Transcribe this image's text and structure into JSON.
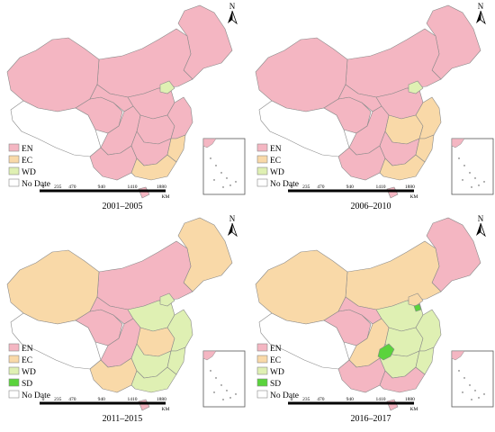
{
  "legend_labels": {
    "en": "EN",
    "ec": "EC",
    "wd": "WD",
    "sd": "SD",
    "nodate": "No Date"
  },
  "colors": {
    "en": "#f4b6c2",
    "ec": "#f9d9a8",
    "wd": "#dff0b3",
    "sd": "#5ad33c",
    "nodate": "#ffffff",
    "border": "#8a8a8a"
  },
  "north_label": "N",
  "scale": {
    "ticks": [
      "0",
      "235",
      "470",
      "940",
      "1410",
      "1880"
    ],
    "unit": "KM"
  },
  "panels": [
    {
      "period": "2001–2005",
      "regions": {
        "northeast": "en",
        "inner_mongolia": "en",
        "xinjiang": "en",
        "tibet": "nodate",
        "qinghai": "en",
        "gansu": "en",
        "north_china": "en",
        "beijing_tianjin": "wd",
        "central": "en",
        "sichuan": "en",
        "southwest": "en",
        "east_coast": "en",
        "south_central": "en",
        "guangdong": "ec",
        "fujian": "ec",
        "hainan": "en",
        "sd_blob_north": "none",
        "sd_blob_center": "none"
      }
    },
    {
      "period": "2006–2010",
      "regions": {
        "northeast": "en",
        "inner_mongolia": "en",
        "xinjiang": "en",
        "tibet": "nodate",
        "qinghai": "en",
        "gansu": "en",
        "north_china": "en",
        "beijing_tianjin": "wd",
        "central": "ec",
        "sichuan": "en",
        "southwest": "en",
        "east_coast": "ec",
        "south_central": "en",
        "guangdong": "ec",
        "fujian": "ec",
        "hainan": "en",
        "sd_blob_north": "none",
        "sd_blob_center": "none"
      }
    },
    {
      "period": "2011–2015",
      "regions": {
        "northeast": "ec",
        "inner_mongolia": "en",
        "xinjiang": "ec",
        "tibet": "nodate",
        "qinghai": "en",
        "gansu": "en",
        "north_china": "wd",
        "beijing_tianjin": "wd",
        "central": "ec",
        "sichuan": "en",
        "southwest": "ec",
        "east_coast": "wd",
        "south_central": "wd",
        "guangdong": "wd",
        "fujian": "wd",
        "hainan": "en",
        "sd_blob_north": "none",
        "sd_blob_center": "none"
      }
    },
    {
      "period": "2016–2017",
      "regions": {
        "northeast": "en",
        "inner_mongolia": "ec",
        "xinjiang": "ec",
        "tibet": "nodate",
        "qinghai": "en",
        "gansu": "en",
        "north_china": "wd",
        "beijing_tianjin": "ec",
        "central": "wd",
        "sichuan": "ec",
        "southwest": "en",
        "east_coast": "wd",
        "south_central": "wd",
        "guangdong": "en",
        "fujian": "wd",
        "hainan": "en",
        "sd_blob_north": "sd",
        "sd_blob_center": "sd"
      }
    }
  ]
}
